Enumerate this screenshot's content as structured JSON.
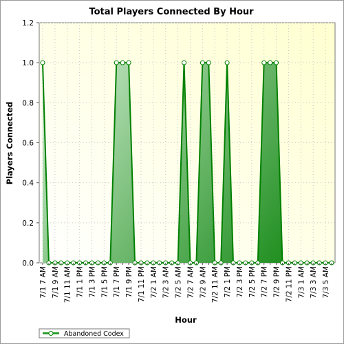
{
  "chart_data": {
    "type": "area",
    "title": "Total Players Connected By Hour",
    "xlabel": "Hour",
    "ylabel": "Players Connected",
    "ylim": [
      0,
      1.2
    ],
    "yticks": [
      "0.0",
      "0.2",
      "0.4",
      "0.6",
      "0.8",
      "1.0",
      "1.2"
    ],
    "grid": true,
    "legend_position": "bottom-left",
    "x_tick_labels": [
      "7/1 7 AM",
      "7/1 9 AM",
      "7/1 11 AM",
      "7/1 1 PM",
      "7/1 3 PM",
      "7/1 5 PM",
      "7/1 7 PM",
      "7/1 9 PM",
      "7/1 11 PM",
      "7/2 1 AM",
      "7/2 3 AM",
      "7/2 5 AM",
      "7/2 7 AM",
      "7/2 9 AM",
      "7/2 11 AM",
      "7/2 1 PM",
      "7/2 3 PM",
      "7/2 5 PM",
      "7/2 7 PM",
      "7/2 9 PM",
      "7/2 11 PM",
      "7/3 1 AM",
      "7/3 3 AM",
      "7/3 5 AM"
    ],
    "x": [
      "7/1 7 AM",
      "7/1 8 AM",
      "7/1 9 AM",
      "7/1 10 AM",
      "7/1 11 AM",
      "7/1 12 PM",
      "7/1 1 PM",
      "7/1 2 PM",
      "7/1 3 PM",
      "7/1 4 PM",
      "7/1 5 PM",
      "7/1 6 PM",
      "7/1 7 PM",
      "7/1 8 PM",
      "7/1 9 PM",
      "7/1 10 PM",
      "7/1 11 PM",
      "7/2 12 AM",
      "7/2 1 AM",
      "7/2 2 AM",
      "7/2 3 AM",
      "7/2 4 AM",
      "7/2 5 AM",
      "7/2 6 AM",
      "7/2 7 AM",
      "7/2 8 AM",
      "7/2 9 AM",
      "7/2 10 AM",
      "7/2 11 AM",
      "7/2 12 PM",
      "7/2 1 PM",
      "7/2 2 PM",
      "7/2 3 PM",
      "7/2 4 PM",
      "7/2 5 PM",
      "7/2 6 PM",
      "7/2 7 PM",
      "7/2 8 PM",
      "7/2 9 PM",
      "7/2 10 PM",
      "7/2 11 PM",
      "7/3 12 AM",
      "7/3 1 AM",
      "7/3 2 AM",
      "7/3 3 AM",
      "7/3 4 AM",
      "7/3 5 AM",
      "7/3 6 AM"
    ],
    "series": [
      {
        "name": "Abandoned Codex",
        "color": "#008000",
        "values": [
          1,
          0,
          0,
          0,
          0,
          0,
          0,
          0,
          0,
          0,
          0,
          0,
          1,
          1,
          1,
          0,
          0,
          0,
          0,
          0,
          0,
          0,
          0,
          1,
          0,
          0,
          1,
          1,
          0,
          0,
          1,
          0,
          0,
          0,
          0,
          0,
          1,
          1,
          1,
          0,
          0,
          0,
          0,
          0,
          0,
          0,
          0,
          0
        ]
      }
    ]
  },
  "colors": {
    "plot_background_top_right": "#ffffd0",
    "plot_background_bottom_left": "#ffffff",
    "area_light": "#c8e6c8",
    "area_dark": "#088a08",
    "line": "#008000",
    "marker_fill": "#ffffff"
  }
}
